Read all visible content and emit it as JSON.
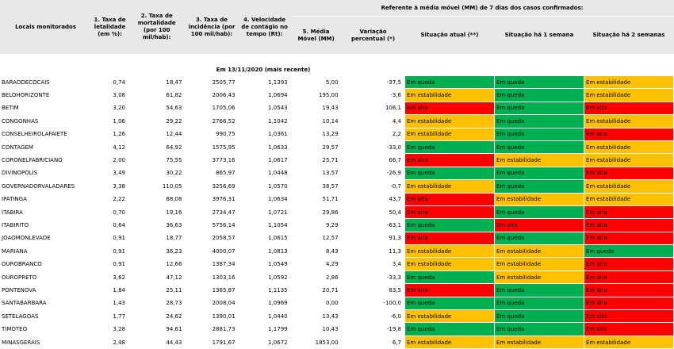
{
  "header": {
    "col_locais": "Locais monitorados",
    "col_letalidade": "1. Taxa de letalidade (em %):",
    "col_mortalidade": "2. Taxa de mortalidade (por 100 mil/hab):",
    "col_incidencia": "3. Taxa de incidência (por 100 mil/hab):",
    "col_velocidade": "4. Velocidade de contágio no tempo (Rt):",
    "referente": "Referente à média móvel (MM) de 7 dias  dos casos confirmados:",
    "col_media_movel": "5. Média Móvel (MM)",
    "col_variacao": "Variação percentual (*)",
    "col_situacao_atual": "Situação atual (**)",
    "col_situacao_1sem": "Situação há 1 semana",
    "col_situacao_2sem": "Situação há 2 semanas"
  },
  "date_label": "Em 13/11/2020 (mais recente)",
  "status_colors": {
    "Em queda": "#00b050",
    "Em estabilidade": "#ffc000",
    "Em alta": "#ff0000"
  },
  "rows": [
    {
      "local": "BARAODECOCAIS",
      "letalidade": "0,74",
      "mortalidade": "18,47",
      "incidencia": "2505,77",
      "rt": "1,1393",
      "mm": "5,00",
      "variacao": "-37,5",
      "atual": "Em queda",
      "sem1": "Em queda",
      "sem2": "Em estabilidade"
    },
    {
      "local": "BELOHORIZONTE",
      "letalidade": "3,08",
      "mortalidade": "61,82",
      "incidencia": "2006,43",
      "rt": "1,0694",
      "mm": "195,00",
      "variacao": "-3,6",
      "atual": "Em estabilidade",
      "sem1": "Em queda",
      "sem2": "Em estabilidade"
    },
    {
      "local": "BETIM",
      "letalidade": "3,20",
      "mortalidade": "54,63",
      "incidencia": "1705,06",
      "rt": "1,0543",
      "mm": "19,43",
      "variacao": "106,1",
      "atual": "Em alta",
      "sem1": "Em queda",
      "sem2": "Em alta"
    },
    {
      "local": "CONGONHAS",
      "letalidade": "1,06",
      "mortalidade": "29,22",
      "incidencia": "2766,52",
      "rt": "1,1042",
      "mm": "10,14",
      "variacao": "4,4",
      "atual": "Em estabilidade",
      "sem1": "Em queda",
      "sem2": "Em estabilidade"
    },
    {
      "local": "CONSELHEIROLAFAIETE",
      "letalidade": "1,26",
      "mortalidade": "12,44",
      "incidencia": "990,75",
      "rt": "1,0361",
      "mm": "13,29",
      "variacao": "2,2",
      "atual": "Em estabilidade",
      "sem1": "Em queda",
      "sem2": "Em alta"
    },
    {
      "local": "CONTAGEM",
      "letalidade": "4,12",
      "mortalidade": "64,92",
      "incidencia": "1575,95",
      "rt": "1,0633",
      "mm": "29,57",
      "variacao": "-33,0",
      "atual": "Em queda",
      "sem1": "Em queda",
      "sem2": "Em estabilidade"
    },
    {
      "local": "CORONELFABRICIANO",
      "letalidade": "2,00",
      "mortalidade": "75,55",
      "incidencia": "3773,16",
      "rt": "1,0617",
      "mm": "25,71",
      "variacao": "66,7",
      "atual": "Em alta",
      "sem1": "Em estabilidade",
      "sem2": "Em estabilidade"
    },
    {
      "local": "DIVINOPOLIS",
      "letalidade": "3,49",
      "mortalidade": "30,22",
      "incidencia": "865,97",
      "rt": "1,0448",
      "mm": "13,57",
      "variacao": "-26,9",
      "atual": "Em queda",
      "sem1": "Em queda",
      "sem2": "Em alta"
    },
    {
      "local": "GOVERNADORVALADARES",
      "letalidade": "3,38",
      "mortalidade": "110,05",
      "incidencia": "3256,69",
      "rt": "1,0570",
      "mm": "38,57",
      "variacao": "-0,7",
      "atual": "Em estabilidade",
      "sem1": "Em queda",
      "sem2": "Em estabilidade"
    },
    {
      "local": "IPATINGA",
      "letalidade": "2,22",
      "mortalidade": "88,08",
      "incidencia": "3976,31",
      "rt": "1,0634",
      "mm": "51,71",
      "variacao": "43,7",
      "atual": "Em alta",
      "sem1": "Em estabilidade",
      "sem2": "Em estabilidade"
    },
    {
      "local": "ITABIRA",
      "letalidade": "0,70",
      "mortalidade": "19,16",
      "incidencia": "2734,47",
      "rt": "1,0721",
      "mm": "29,86",
      "variacao": "50,4",
      "atual": "Em alta",
      "sem1": "Em queda",
      "sem2": "Em alta"
    },
    {
      "local": "ITABIRITO",
      "letalidade": "0,64",
      "mortalidade": "36,63",
      "incidencia": "5756,14",
      "rt": "1,1054",
      "mm": "9,29",
      "variacao": "-63,1",
      "atual": "Em queda",
      "sem1": "Em alta",
      "sem2": "Em alta"
    },
    {
      "local": "JOAOMONLEVADE",
      "letalidade": "0,91",
      "mortalidade": "18,77",
      "incidencia": "2058,57",
      "rt": "1,0615",
      "mm": "12,57",
      "variacao": "91,3",
      "atual": "Em alta",
      "sem1": "Em queda",
      "sem2": "Em alta"
    },
    {
      "local": "MARIANA",
      "letalidade": "0,91",
      "mortalidade": "36,23",
      "incidencia": "4000,07",
      "rt": "1,0813",
      "mm": "8,43",
      "variacao": "11,3",
      "atual": "Em estabilidade",
      "sem1": "Em estabilidade",
      "sem2": "Em queda"
    },
    {
      "local": "OUROBRANCO",
      "letalidade": "0,91",
      "mortalidade": "12,66",
      "incidencia": "1387,34",
      "rt": "1,0549",
      "mm": "4,29",
      "variacao": "3,4",
      "atual": "Em estabilidade",
      "sem1": "Em estabilidade",
      "sem2": "Em alta"
    },
    {
      "local": "OUROPRETO",
      "letalidade": "3,62",
      "mortalidade": "47,12",
      "incidencia": "1303,16",
      "rt": "1,0592",
      "mm": "2,86",
      "variacao": "-33,3",
      "atual": "Em queda",
      "sem1": "Em estabilidade",
      "sem2": "Em alta"
    },
    {
      "local": "PONTENOVA",
      "letalidade": "1,84",
      "mortalidade": "25,11",
      "incidencia": "1365,87",
      "rt": "1,1135",
      "mm": "20,71",
      "variacao": "83,5",
      "atual": "Em alta",
      "sem1": "Em queda",
      "sem2": "Em alta"
    },
    {
      "local": "SANTABARBARA",
      "letalidade": "1,43",
      "mortalidade": "28,73",
      "incidencia": "2008,04",
      "rt": "1,0969",
      "mm": "0,00",
      "variacao": "-100,0",
      "atual": "Em queda",
      "sem1": "Em queda",
      "sem2": "Em alta"
    },
    {
      "local": "SETELAGOAS",
      "letalidade": "1,77",
      "mortalidade": "24,62",
      "incidencia": "1390,01",
      "rt": "1,0440",
      "mm": "13,43",
      "variacao": "-6,0",
      "atual": "Em estabilidade",
      "sem1": "Em queda",
      "sem2": "Em alta"
    },
    {
      "local": "TIMOTEO",
      "letalidade": "3,28",
      "mortalidade": "94,61",
      "incidencia": "2881,73",
      "rt": "1,1799",
      "mm": "10,43",
      "variacao": "-19,8",
      "atual": "Em queda",
      "sem1": "Em queda",
      "sem2": "Em alta"
    },
    {
      "local": "MINASGERAIS",
      "letalidade": "2,48",
      "mortalidade": "44,43",
      "incidencia": "1791,67",
      "rt": "1,0672",
      "mm": "1853,00",
      "variacao": "6,7",
      "atual": "Em estabilidade",
      "sem1": "Em estabilidade",
      "sem2": "Em estabilidade"
    }
  ]
}
